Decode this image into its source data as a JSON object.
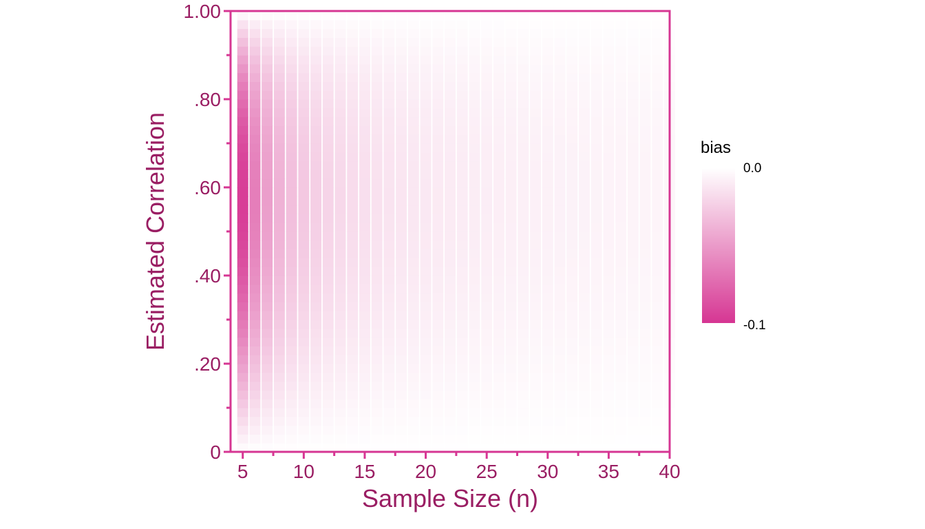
{
  "chart_data": {
    "type": "heatmap",
    "title": "",
    "xlabel": "Sample Size (n)",
    "ylabel": "Estimated Correlation",
    "xlim": [
      4,
      40
    ],
    "ylim": [
      0,
      1
    ],
    "x_ticks": [
      5,
      10,
      15,
      20,
      25,
      30,
      35,
      40
    ],
    "x_tick_labels": [
      "5",
      "10",
      "15",
      "20",
      "25",
      "30",
      "35",
      "40"
    ],
    "y_ticks": [
      0,
      0.2,
      0.4,
      0.6,
      0.8,
      1.0
    ],
    "y_tick_labels": [
      "0",
      ".20",
      ".40",
      ".60",
      ".80",
      "1.00"
    ],
    "n_values": [
      5,
      6,
      7,
      8,
      9,
      10,
      11,
      12,
      13,
      14,
      15,
      16,
      17,
      18,
      19,
      20,
      21,
      22,
      23,
      24,
      25,
      26,
      27,
      28,
      29,
      30,
      31,
      32,
      33,
      34,
      35,
      36,
      37,
      38,
      39,
      40
    ],
    "fill_variable": "bias",
    "bias_formula_note": "",
    "legend": {
      "title": "bias",
      "position": "right",
      "min": -0.1,
      "max": 0.0,
      "labels": [
        "0.0",
        "-0.1"
      ],
      "color_low": "#d63693",
      "color_high": "#ffffff"
    },
    "grid": false,
    "colors": {
      "axis": "#d63693",
      "text": "#9a1e63",
      "legend_text": "#000000"
    }
  }
}
